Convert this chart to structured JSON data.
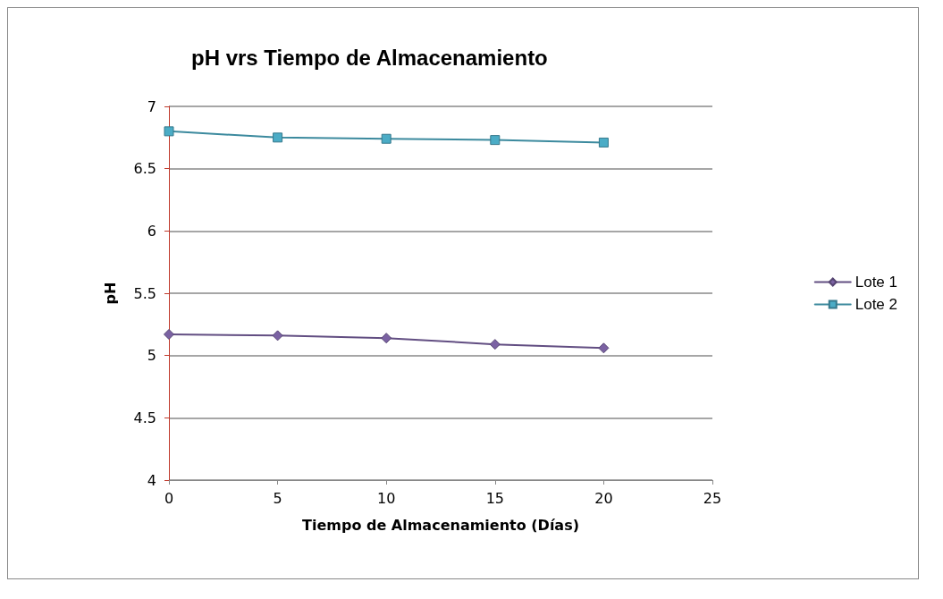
{
  "chart_data": {
    "type": "line",
    "title": "pH vrs Tiempo de Almacenamiento",
    "xlabel": "Tiempo de Almacenamiento (Días)",
    "ylabel": "pH",
    "x": [
      0,
      5,
      10,
      15,
      20
    ],
    "series": [
      {
        "name": "Lote 1",
        "color": "#7b62a3",
        "marker": "diamond",
        "values": [
          5.17,
          5.16,
          5.14,
          5.09,
          5.06
        ]
      },
      {
        "name": "Lote 2",
        "color": "#4bacc6",
        "marker": "square",
        "values": [
          6.8,
          6.75,
          6.74,
          6.73,
          6.71
        ]
      }
    ],
    "xlim": [
      0,
      25
    ],
    "xticks": [
      0,
      5,
      10,
      15,
      20,
      25
    ],
    "ylim": [
      4,
      7
    ],
    "yticks": [
      4,
      4.5,
      5,
      5.5,
      6,
      6.5,
      7
    ],
    "grid": "y",
    "legend": "right",
    "line_style": "solid"
  }
}
